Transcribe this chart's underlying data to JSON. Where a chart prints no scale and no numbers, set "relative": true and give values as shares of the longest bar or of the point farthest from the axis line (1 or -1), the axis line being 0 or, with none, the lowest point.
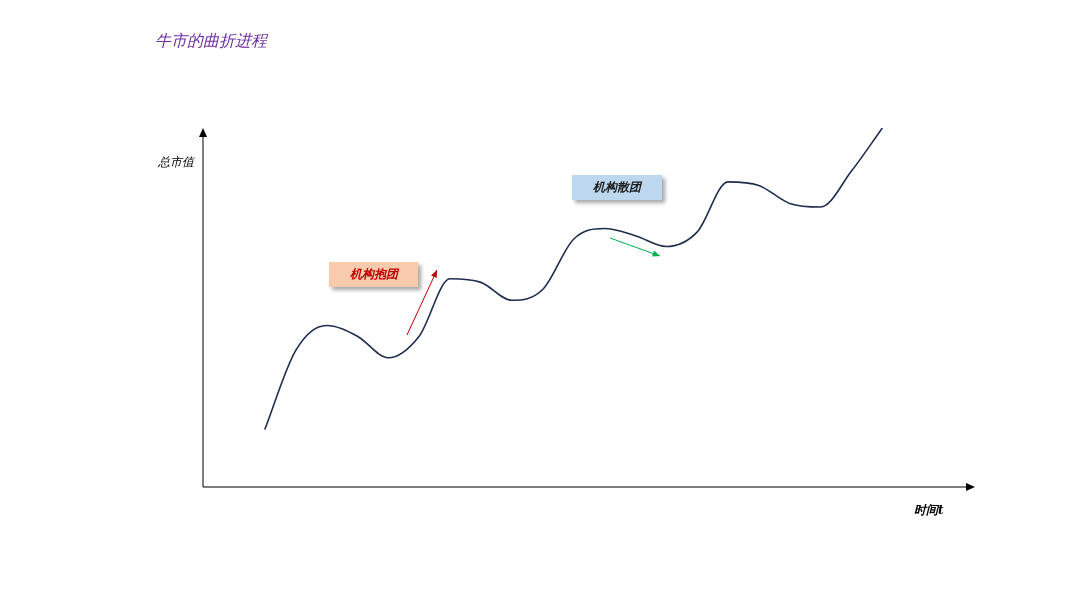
{
  "chart_data": {
    "type": "line",
    "title": "牛市的曲折进程",
    "ylabel": "总市值",
    "xlabel": "时间t",
    "relative": true,
    "legend": false,
    "grid": false,
    "marker": "none",
    "line_style": "solid",
    "categories": [
      null,
      null,
      null,
      null,
      null,
      null,
      null,
      null,
      null,
      null,
      null,
      null,
      null,
      null,
      null,
      null,
      null,
      null,
      null,
      null,
      null,
      null,
      null,
      null,
      null,
      null
    ],
    "series": [
      {
        "color": "#1f2d4f",
        "values": [
          null,
          null,
          0.16,
          0.38,
          0.45,
          0.42,
          0.36,
          0.42,
          0.58,
          0.57,
          0.52,
          0.55,
          0.69,
          0.72,
          0.7,
          0.67,
          0.71,
          0.85,
          0.84,
          0.79,
          0.78,
          0.88,
          1,
          null,
          null,
          null
        ]
      }
    ],
    "annotations": [
      "机构抱团",
      "机构散团"
    ]
  }
}
